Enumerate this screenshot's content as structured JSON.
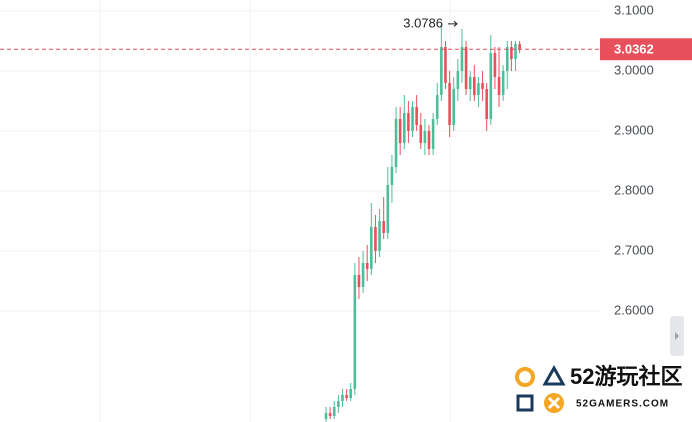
{
  "chart_data": {
    "type": "candlestick",
    "categories": [
      null,
      null,
      null,
      null,
      null,
      null,
      null,
      null,
      null,
      null,
      null,
      null,
      null,
      null,
      null,
      null,
      null,
      null,
      null,
      null,
      null,
      null,
      null,
      null,
      null,
      null,
      null,
      null,
      null,
      null,
      null,
      null,
      null,
      null,
      null,
      null,
      null,
      null,
      null,
      null,
      null,
      null,
      null,
      null,
      null,
      null,
      null,
      null
    ],
    "open": [
      2.42,
      2.43,
      2.425,
      2.44,
      2.45,
      2.46,
      2.455,
      2.47,
      2.66,
      2.64,
      2.68,
      2.67,
      2.74,
      2.7,
      2.75,
      2.73,
      2.81,
      2.84,
      2.92,
      2.88,
      2.93,
      2.9,
      2.94,
      2.91,
      2.88,
      2.9,
      2.87,
      2.92,
      2.96,
      3.04,
      2.98,
      2.91,
      2.97,
      3.0,
      3.04,
      2.97,
      2.99,
      2.96,
      2.98,
      2.97,
      2.92,
      3.03,
      2.99,
      2.96,
      3.0,
      3.04,
      3.02,
      3.045
    ],
    "high": [
      2.44,
      2.44,
      2.45,
      2.46,
      2.47,
      2.47,
      2.48,
      2.68,
      2.69,
      2.7,
      2.71,
      2.78,
      2.76,
      2.77,
      2.79,
      2.84,
      2.86,
      2.94,
      2.94,
      2.96,
      2.95,
      2.95,
      2.96,
      2.93,
      2.92,
      2.91,
      2.93,
      2.98,
      3.0786,
      3.05,
      3.0,
      2.99,
      3.02,
      3.07,
      3.05,
      3.0,
      3.01,
      2.99,
      3.0,
      2.98,
      3.06,
      3.04,
      3.04,
      3.01,
      3.05,
      3.05,
      3.05,
      3.05
    ],
    "low": [
      2.41,
      2.42,
      2.42,
      2.43,
      2.44,
      2.45,
      2.45,
      2.46,
      2.62,
      2.63,
      2.65,
      2.66,
      2.68,
      2.69,
      2.72,
      2.72,
      2.78,
      2.83,
      2.86,
      2.87,
      2.88,
      2.89,
      2.9,
      2.87,
      2.86,
      2.86,
      2.86,
      2.91,
      2.95,
      2.97,
      2.89,
      2.9,
      2.95,
      2.98,
      2.96,
      2.95,
      2.95,
      2.94,
      2.95,
      2.9,
      2.91,
      2.97,
      2.94,
      2.95,
      2.97,
      3.0,
      3.0,
      3.03
    ],
    "close": [
      2.43,
      2.425,
      2.44,
      2.45,
      2.46,
      2.455,
      2.47,
      2.66,
      2.64,
      2.68,
      2.67,
      2.74,
      2.7,
      2.75,
      2.73,
      2.81,
      2.84,
      2.92,
      2.88,
      2.93,
      2.9,
      2.94,
      2.91,
      2.88,
      2.9,
      2.87,
      2.92,
      2.96,
      3.04,
      2.98,
      2.91,
      2.97,
      3.0,
      3.04,
      2.97,
      2.99,
      2.96,
      2.98,
      2.97,
      2.92,
      3.03,
      2.99,
      2.96,
      3.0,
      3.04,
      3.02,
      3.045,
      3.0362
    ],
    "up_color": "#4cbf9a",
    "down_color": "#e8505b",
    "ylim": [
      2.415,
      3.1183
    ],
    "yticks": [
      {
        "value": 2.6,
        "label": "2.6000"
      },
      {
        "value": 2.7,
        "label": "2.7000"
      },
      {
        "value": 2.8,
        "label": "2.8000"
      },
      {
        "value": 2.9,
        "label": "2.9000"
      },
      {
        "value": 3.0,
        "label": "3.0000"
      },
      {
        "value": 3.1,
        "label": "3.1000"
      }
    ],
    "grid": true,
    "max_label": 3.0786,
    "last_price": 3.0362,
    "last_price_color": "#e8505b",
    "watermark": {
      "title": "52游玩社区",
      "subtitle": "52GAMERS.COM"
    }
  }
}
